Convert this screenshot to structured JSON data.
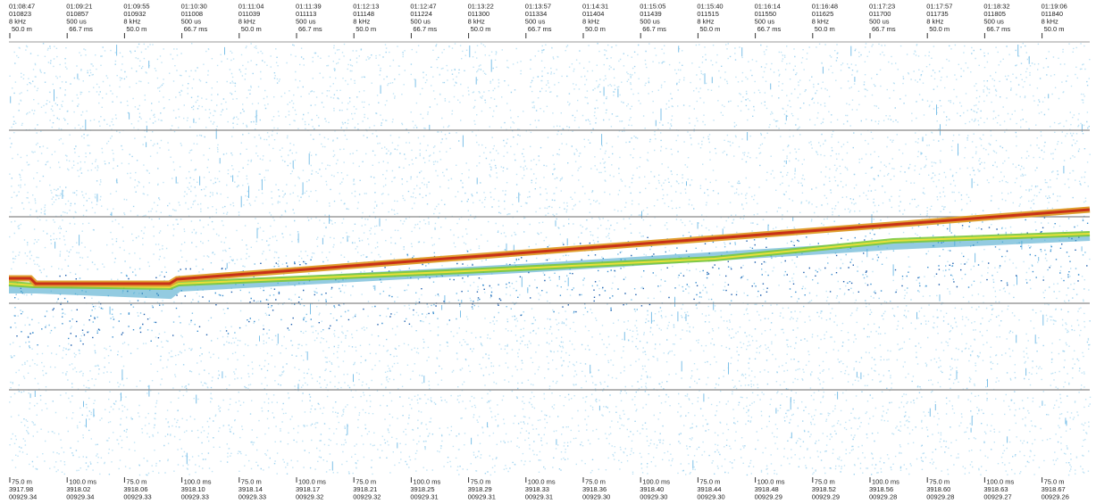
{
  "header_columns": [
    {
      "time": "01:08:47",
      "id": "010823",
      "line3": "8 kHz",
      "line4": "50.0 m"
    },
    {
      "time": "01:09:21",
      "id": "010857",
      "line3": "500 us",
      "line4": "66.7 ms"
    },
    {
      "time": "01:09:55",
      "id": "010932",
      "line3": "8 kHz",
      "line4": "50.0 m"
    },
    {
      "time": "01:10:30",
      "id": "011008",
      "line3": "500 us",
      "line4": "66.7 ms"
    },
    {
      "time": "01:11:04",
      "id": "011039",
      "line3": "8 kHz",
      "line4": "50.0 m"
    },
    {
      "time": "01:11:39",
      "id": "011113",
      "line3": "500 us",
      "line4": "66.7 ms"
    },
    {
      "time": "01:12:13",
      "id": "011148",
      "line3": "8 kHz",
      "line4": "50.0 m"
    },
    {
      "time": "01:12:47",
      "id": "011224",
      "line3": "500 us",
      "line4": "66.7 ms"
    },
    {
      "time": "01:13:22",
      "id": "011300",
      "line3": "8 kHz",
      "line4": "50.0 m"
    },
    {
      "time": "01:13:57",
      "id": "011334",
      "line3": "500 us",
      "line4": "66.7 ms"
    },
    {
      "time": "01:14:31",
      "id": "011404",
      "line3": "8 kHz",
      "line4": "50.0 m"
    },
    {
      "time": "01:15:05",
      "id": "011439",
      "line3": "500 us",
      "line4": "66.7 ms"
    },
    {
      "time": "01:15:40",
      "id": "011515",
      "line3": "8 kHz",
      "line4": "50.0 m"
    },
    {
      "time": "01:16:14",
      "id": "011550",
      "line3": "500 us",
      "line4": "66.7 ms"
    },
    {
      "time": "01:16:48",
      "id": "011625",
      "line3": "8 kHz",
      "line4": "50.0 m"
    },
    {
      "time": "01:17:23",
      "id": "011700",
      "line3": "500 us",
      "line4": "66.7 ms"
    },
    {
      "time": "01:17:57",
      "id": "011735",
      "line3": "8 kHz",
      "line4": "50.0 m"
    },
    {
      "time": "01:18:32",
      "id": "011805",
      "line3": "500 us",
      "line4": "66.7 ms"
    },
    {
      "time": "01:19:06",
      "id": "011840",
      "line3": "8 kHz",
      "line4": "50.0 m"
    }
  ],
  "footer_columns": [
    {
      "range": "75.0 m",
      "a": "3917.98",
      "b": "00929.34"
    },
    {
      "range": "100.0 ms",
      "a": "3918.02",
      "b": "00929.34"
    },
    {
      "range": "75.0 m",
      "a": "3918.06",
      "b": "00929.33"
    },
    {
      "range": "100.0 ms",
      "a": "3918.10",
      "b": "00929.33"
    },
    {
      "range": "75.0 m",
      "a": "3918.14",
      "b": "00929.33"
    },
    {
      "range": "100.0 ms",
      "a": "3918.17",
      "b": "00929.32"
    },
    {
      "range": "75.0 m",
      "a": "3918.21",
      "b": "00929.32"
    },
    {
      "range": "100.0 ms",
      "a": "3918.25",
      "b": "00929.31"
    },
    {
      "range": "75.0 m",
      "a": "3918.29",
      "b": "00929.31"
    },
    {
      "range": "100.0 ms",
      "a": "3918.33",
      "b": "00929.31"
    },
    {
      "range": "75.0 m",
      "a": "3918.36",
      "b": "00929.30"
    },
    {
      "range": "100.0 ms",
      "a": "3918.40",
      "b": "00929.30"
    },
    {
      "range": "75.0 m",
      "a": "3918.44",
      "b": "00929.30"
    },
    {
      "range": "100.0 ms",
      "a": "3918.48",
      "b": "00929.29"
    },
    {
      "range": "75.0 m",
      "a": "3918.52",
      "b": "00929.29"
    },
    {
      "range": "100.0 ms",
      "a": "3918.56",
      "b": "00929.28"
    },
    {
      "range": "75.0 m",
      "a": "3918.60",
      "b": "00929.28"
    },
    {
      "range": "100.0 ms",
      "a": "3918.63",
      "b": "00929.27"
    },
    {
      "range": "75.0 m",
      "a": "3918.67",
      "b": "00929.26"
    }
  ]
}
